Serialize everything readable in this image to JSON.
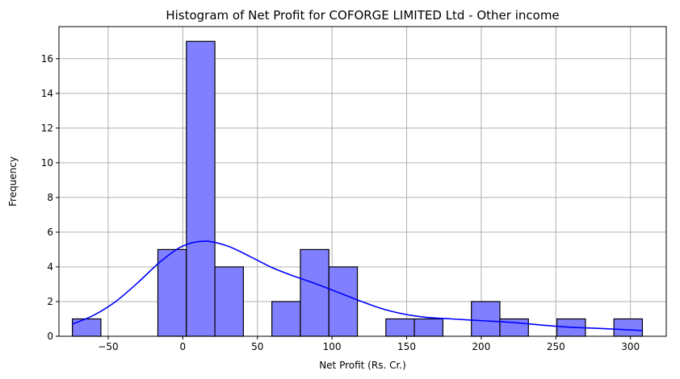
{
  "chart_data": {
    "type": "bar",
    "title": "Histogram of Net Profit for COFORGE LIMITED Ltd - Other income",
    "xlabel": "Net Profit (Rs. Cr.)",
    "ylabel": "Frequency",
    "xlim": [
      -83,
      324
    ],
    "ylim": [
      0,
      17.85
    ],
    "xticks": [
      -50,
      0,
      50,
      100,
      150,
      200,
      250,
      300
    ],
    "xtick_labels": [
      "−50",
      "0",
      "50",
      "100",
      "150",
      "200",
      "250",
      "300"
    ],
    "yticks": [
      0,
      2,
      4,
      6,
      8,
      10,
      12,
      14,
      16
    ],
    "grid": true,
    "bin_width": 19.1,
    "bins": [
      {
        "start": -74.0,
        "count": 1
      },
      {
        "start": -54.9,
        "count": 0
      },
      {
        "start": -35.8,
        "count": 0
      },
      {
        "start": -16.7,
        "count": 5
      },
      {
        "start": 2.4,
        "count": 17
      },
      {
        "start": 21.5,
        "count": 4
      },
      {
        "start": 40.6,
        "count": 0
      },
      {
        "start": 59.7,
        "count": 2
      },
      {
        "start": 78.8,
        "count": 5
      },
      {
        "start": 97.9,
        "count": 4
      },
      {
        "start": 117.0,
        "count": 0
      },
      {
        "start": 136.1,
        "count": 1
      },
      {
        "start": 155.2,
        "count": 1
      },
      {
        "start": 174.3,
        "count": 0
      },
      {
        "start": 193.4,
        "count": 2
      },
      {
        "start": 212.5,
        "count": 1
      },
      {
        "start": 231.6,
        "count": 0
      },
      {
        "start": 250.7,
        "count": 1
      },
      {
        "start": 269.8,
        "count": 0
      },
      {
        "start": 288.9,
        "count": 1
      }
    ],
    "kde": {
      "x": [
        -74,
        -60,
        -45,
        -30,
        -15,
        0,
        15,
        30,
        45,
        60,
        75,
        90,
        105,
        120,
        135,
        150,
        165,
        180,
        200,
        220,
        240,
        260,
        280,
        308
      ],
      "y": [
        0.7,
        1.2,
        2.0,
        3.1,
        4.3,
        5.2,
        5.48,
        5.2,
        4.6,
        3.95,
        3.45,
        3.0,
        2.5,
        2.0,
        1.55,
        1.25,
        1.08,
        1.0,
        0.9,
        0.8,
        0.65,
        0.52,
        0.45,
        0.33
      ]
    },
    "colors": {
      "bar_fill": "#8080ff",
      "bar_edge": "#000000",
      "kde_line": "#0000ff",
      "grid": "#b0b0b0"
    }
  }
}
